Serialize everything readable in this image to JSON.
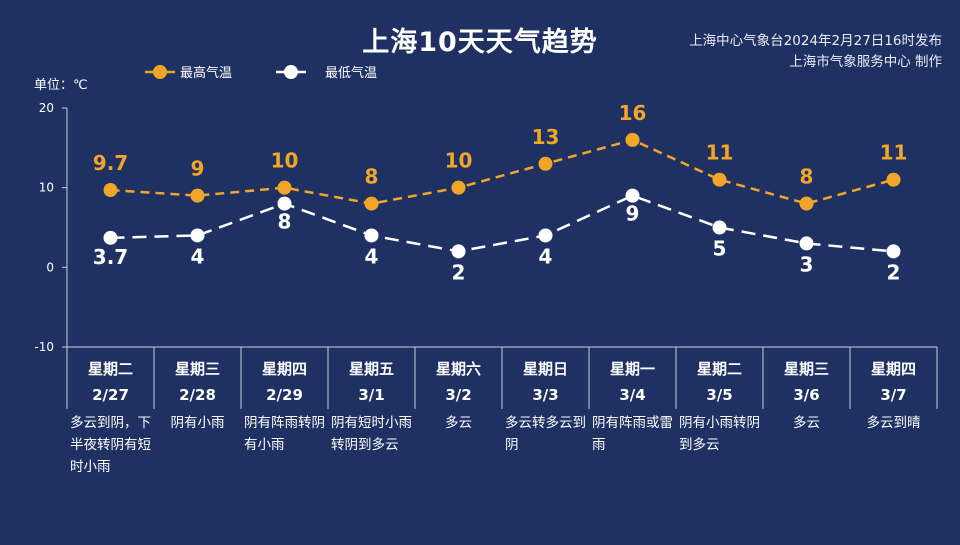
{
  "title": "上海10天天气趋势",
  "issuer": [
    "上海中心气象台2024年2月27日16时发布",
    "上海市气象服务中心 制作"
  ],
  "unit": "单位：℃",
  "colors": {
    "background": "#1f3163",
    "high": "#f2a629",
    "low": "#ffffff"
  },
  "chart_data": {
    "type": "line",
    "ylim": [
      -10,
      20
    ],
    "yticks": [
      -10,
      0,
      10,
      20
    ],
    "legend_position": "top-left",
    "categories": [
      "星期二",
      "星期三",
      "星期四",
      "星期五",
      "星期六",
      "星期日",
      "星期一",
      "星期二",
      "星期三",
      "星期四"
    ],
    "dates": [
      "2/27",
      "2/28",
      "2/29",
      "3/1",
      "3/2",
      "3/3",
      "3/4",
      "3/5",
      "3/6",
      "3/7"
    ],
    "series": [
      {
        "name": "最高气温",
        "values": [
          9.7,
          9,
          10,
          8,
          10,
          13,
          16,
          11,
          8,
          11
        ]
      },
      {
        "name": "最低气温",
        "values": [
          3.7,
          4,
          8,
          4,
          2,
          4,
          9,
          5,
          3,
          2
        ]
      }
    ],
    "weather": [
      "多云到阴，下半夜转阴有短时小雨",
      "阴有小雨",
      "阴有阵雨转阴有小雨",
      "阴有短时小雨转阴到多云",
      "多云",
      "多云转多云到阴",
      "阴有阵雨或雷雨",
      "阴有小雨转阴到多云",
      "多云",
      "多云到晴"
    ]
  }
}
